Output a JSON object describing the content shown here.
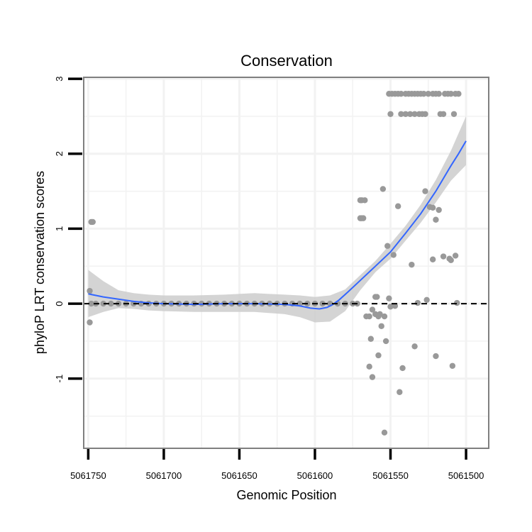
{
  "chart_data": {
    "type": "scatter",
    "title": "Conservation",
    "xlabel": "Genomic Position",
    "ylabel": "phyloP LRT conservation scores",
    "xlim": [
      5061753,
      5061485
    ],
    "x_reversed": true,
    "ylim": [
      -1.93,
      3.02
    ],
    "xticks": [
      5061750,
      5061700,
      5061650,
      5061600,
      5061550,
      5061500
    ],
    "xtick_labels": [
      "5061750",
      "5061700",
      "5061650",
      "5061600",
      "5061550",
      "5061500"
    ],
    "yticks": [
      -1,
      0,
      1,
      2,
      3
    ],
    "ytick_labels": [
      "-1",
      "0",
      "1",
      "2",
      "3"
    ],
    "grid": true,
    "reference_line": {
      "y": 0,
      "style": "dashed",
      "color": "#000000"
    },
    "colors": {
      "points": "#999999",
      "smooth_line": "#3366ff",
      "confidence_band": "#cccccc",
      "panel_border": "#7f7f7f",
      "grid": "#f2f2f2"
    },
    "series": [
      {
        "name": "phyloP scores",
        "kind": "points",
        "points": [
          [
            5061749,
            0.17
          ],
          [
            5061749,
            -0.25
          ],
          [
            5061748,
            1.09
          ],
          [
            5061747,
            1.09
          ],
          [
            5061748,
            0.0
          ],
          [
            5061745,
            0.0
          ],
          [
            5061740,
            0.0
          ],
          [
            5061735,
            0.0
          ],
          [
            5061730,
            0.0
          ],
          [
            5061725,
            0.0
          ],
          [
            5061720,
            0.0
          ],
          [
            5061715,
            0.0
          ],
          [
            5061710,
            0.0
          ],
          [
            5061705,
            0.0
          ],
          [
            5061700,
            0.0
          ],
          [
            5061695,
            0.0
          ],
          [
            5061690,
            0.0
          ],
          [
            5061685,
            0.0
          ],
          [
            5061680,
            0.0
          ],
          [
            5061675,
            0.0
          ],
          [
            5061670,
            0.0
          ],
          [
            5061665,
            0.0
          ],
          [
            5061660,
            0.0
          ],
          [
            5061655,
            0.0
          ],
          [
            5061650,
            0.0
          ],
          [
            5061645,
            0.0
          ],
          [
            5061640,
            0.0
          ],
          [
            5061635,
            0.0
          ],
          [
            5061630,
            0.0
          ],
          [
            5061625,
            0.0
          ],
          [
            5061620,
            0.0
          ],
          [
            5061615,
            0.0
          ],
          [
            5061610,
            0.0
          ],
          [
            5061605,
            0.0
          ],
          [
            5061600,
            0.0
          ],
          [
            5061595,
            0.0
          ],
          [
            5061590,
            0.0
          ],
          [
            5061585,
            0.0
          ],
          [
            5061580,
            0.0
          ],
          [
            5061575,
            0.0
          ],
          [
            5061572,
            0.0
          ],
          [
            5061570,
            1.14
          ],
          [
            5061569,
            1.14
          ],
          [
            5061568,
            1.14
          ],
          [
            5061570,
            1.38
          ],
          [
            5061569,
            1.38
          ],
          [
            5061567,
            1.38
          ],
          [
            5061566,
            -0.17
          ],
          [
            5061564,
            -0.17
          ],
          [
            5061563,
            -0.47
          ],
          [
            5061564,
            -0.84
          ],
          [
            5061562,
            -0.98
          ],
          [
            5061562,
            -0.08
          ],
          [
            5061560,
            -0.14
          ],
          [
            5061558,
            -0.17
          ],
          [
            5061560,
            0.09
          ],
          [
            5061559,
            0.09
          ],
          [
            5061557,
            -0.14
          ],
          [
            5061558,
            -0.69
          ],
          [
            5061556,
            -0.3
          ],
          [
            5061555,
            1.53
          ],
          [
            5061554,
            -0.17
          ],
          [
            5061554,
            -1.72
          ],
          [
            5061553,
            -0.5
          ],
          [
            5061552,
            0.77
          ],
          [
            5061551,
            0.07
          ],
          [
            5061550,
            -0.04
          ],
          [
            5061548,
            0.65
          ],
          [
            5061547,
            -0.03
          ],
          [
            5061545,
            1.3
          ],
          [
            5061544,
            -1.18
          ],
          [
            5061542,
            -0.86
          ],
          [
            5061536,
            0.52
          ],
          [
            5061534,
            -0.57
          ],
          [
            5061532,
            0.01
          ],
          [
            5061527,
            1.5
          ],
          [
            5061526,
            0.05
          ],
          [
            5061524,
            1.29
          ],
          [
            5061522,
            1.28
          ],
          [
            5061522,
            0.59
          ],
          [
            5061520,
            -0.7
          ],
          [
            5061520,
            1.12
          ],
          [
            5061518,
            1.25
          ],
          [
            5061515,
            0.63
          ],
          [
            5061511,
            0.6
          ],
          [
            5061510,
            0.58
          ],
          [
            5061509,
            -0.83
          ],
          [
            5061507,
            0.64
          ],
          [
            5061506,
            0.01
          ],
          [
            5061551,
            2.8
          ],
          [
            5061549,
            2.8
          ],
          [
            5061547,
            2.8
          ],
          [
            5061545,
            2.8
          ],
          [
            5061543,
            2.8
          ],
          [
            5061540,
            2.8
          ],
          [
            5061538,
            2.8
          ],
          [
            5061536,
            2.8
          ],
          [
            5061534,
            2.8
          ],
          [
            5061532,
            2.8
          ],
          [
            5061530,
            2.8
          ],
          [
            5061528,
            2.8
          ],
          [
            5061525,
            2.8
          ],
          [
            5061522,
            2.8
          ],
          [
            5061520,
            2.8
          ],
          [
            5061518,
            2.8
          ],
          [
            5061514,
            2.8
          ],
          [
            5061512,
            2.8
          ],
          [
            5061510,
            2.8
          ],
          [
            5061507,
            2.8
          ],
          [
            5061505,
            2.8
          ],
          [
            5061550,
            2.53
          ],
          [
            5061543,
            2.53
          ],
          [
            5061540,
            2.53
          ],
          [
            5061537,
            2.53
          ],
          [
            5061534,
            2.53
          ],
          [
            5061531,
            2.53
          ],
          [
            5061529,
            2.53
          ],
          [
            5061527,
            2.53
          ],
          [
            5061517,
            2.53
          ],
          [
            5061515,
            2.53
          ],
          [
            5061508,
            2.53
          ]
        ]
      },
      {
        "name": "loess fit",
        "kind": "line",
        "points": [
          [
            5061750,
            0.13
          ],
          [
            5061740,
            0.09
          ],
          [
            5061730,
            0.06
          ],
          [
            5061720,
            0.03
          ],
          [
            5061710,
            0.01
          ],
          [
            5061700,
            0.0
          ],
          [
            5061680,
            -0.01
          ],
          [
            5061660,
            0.0
          ],
          [
            5061640,
            0.0
          ],
          [
            5061620,
            -0.01
          ],
          [
            5061610,
            -0.03
          ],
          [
            5061603,
            -0.06
          ],
          [
            5061597,
            -0.07
          ],
          [
            5061592,
            -0.05
          ],
          [
            5061588,
            -0.01
          ],
          [
            5061584,
            0.05
          ],
          [
            5061578,
            0.16
          ],
          [
            5061570,
            0.31
          ],
          [
            5061560,
            0.5
          ],
          [
            5061550,
            0.69
          ],
          [
            5061540,
            0.94
          ],
          [
            5061530,
            1.2
          ],
          [
            5061520,
            1.5
          ],
          [
            5061510,
            1.84
          ],
          [
            5061505,
            2.0
          ],
          [
            5061500,
            2.17
          ]
        ]
      },
      {
        "name": "95% confidence band",
        "kind": "band",
        "upper": [
          [
            5061750,
            0.45
          ],
          [
            5061740,
            0.3
          ],
          [
            5061730,
            0.18
          ],
          [
            5061720,
            0.14
          ],
          [
            5061710,
            0.12
          ],
          [
            5061700,
            0.11
          ],
          [
            5061680,
            0.11
          ],
          [
            5061660,
            0.12
          ],
          [
            5061640,
            0.14
          ],
          [
            5061620,
            0.12
          ],
          [
            5061610,
            0.11
          ],
          [
            5061600,
            0.09
          ],
          [
            5061590,
            0.11
          ],
          [
            5061580,
            0.19
          ],
          [
            5061570,
            0.38
          ],
          [
            5061560,
            0.57
          ],
          [
            5061550,
            0.8
          ],
          [
            5061540,
            1.04
          ],
          [
            5061530,
            1.32
          ],
          [
            5061520,
            1.65
          ],
          [
            5061510,
            2.04
          ],
          [
            5061500,
            2.5
          ]
        ],
        "lower": [
          [
            5061750,
            -0.18
          ],
          [
            5061740,
            -0.11
          ],
          [
            5061730,
            -0.06
          ],
          [
            5061720,
            -0.07
          ],
          [
            5061710,
            -0.09
          ],
          [
            5061700,
            -0.1
          ],
          [
            5061680,
            -0.11
          ],
          [
            5061660,
            -0.11
          ],
          [
            5061640,
            -0.11
          ],
          [
            5061620,
            -0.14
          ],
          [
            5061610,
            -0.18
          ],
          [
            5061600,
            -0.25
          ],
          [
            5061590,
            -0.24
          ],
          [
            5061580,
            -0.1
          ],
          [
            5061570,
            0.18
          ],
          [
            5061560,
            0.42
          ],
          [
            5061550,
            0.6
          ],
          [
            5061540,
            0.84
          ],
          [
            5061530,
            1.08
          ],
          [
            5061520,
            1.35
          ],
          [
            5061510,
            1.64
          ],
          [
            5061500,
            1.85
          ]
        ]
      }
    ]
  }
}
